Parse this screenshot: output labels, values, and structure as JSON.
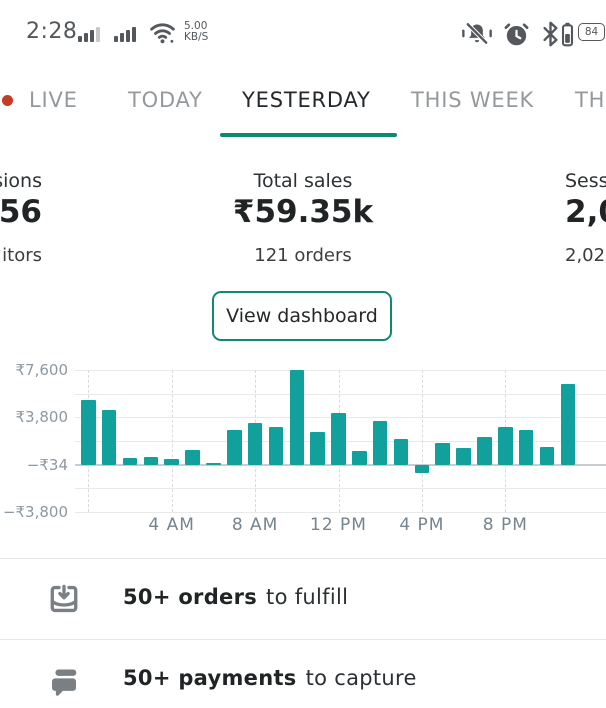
{
  "colors": {
    "accent_teal": "#12a09c",
    "accent_green": "#0e8a71",
    "live_dot_red": "#c43c26"
  },
  "status_bar": {
    "time": "2:28",
    "network_speed_value": "5.00",
    "network_speed_unit": "KB/S",
    "battery_percent": "84"
  },
  "tab_bar": {
    "tabs": [
      {
        "label": "LIVE",
        "active": false,
        "live_dot": true
      },
      {
        "label": "TODAY",
        "active": false
      },
      {
        "label": "YESTERDAY",
        "active": true
      },
      {
        "label": "THIS WEEK",
        "active": false
      },
      {
        "label": "THI",
        "active": false
      }
    ]
  },
  "stats": {
    "left_partial": {
      "label": "sions",
      "value": "56",
      "sub": "itors"
    },
    "center": {
      "label": "Total sales",
      "value": "₹59.35k",
      "sub": "121 orders"
    },
    "right_partial": {
      "label": "Sess",
      "value": "2,0",
      "sub": "2,02"
    }
  },
  "dashboard_button_label": "View dashboard",
  "chart_data": {
    "type": "bar",
    "categories": [
      "12 AM",
      "1 AM",
      "2 AM",
      "3 AM",
      "4 AM",
      "5 AM",
      "6 AM",
      "7 AM",
      "8 AM",
      "9 AM",
      "10 AM",
      "11 AM",
      "12 PM",
      "1 PM",
      "2 PM",
      "3 PM",
      "4 PM",
      "5 PM",
      "6 PM",
      "7 PM",
      "8 PM",
      "9 PM",
      "10 PM",
      "11 PM"
    ],
    "values": [
      5200,
      4400,
      550,
      620,
      460,
      1150,
      150,
      2750,
      3350,
      3000,
      7600,
      2600,
      4150,
      1100,
      3500,
      2050,
      -650,
      1700,
      1350,
      2200,
      3050,
      2750,
      1450,
      6500
    ],
    "x_ticks": [
      {
        "hour": 4,
        "label": "4 AM"
      },
      {
        "hour": 8,
        "label": "8 AM"
      },
      {
        "hour": 12,
        "label": "12 PM"
      },
      {
        "hour": 16,
        "label": "4 PM"
      },
      {
        "hour": 20,
        "label": "8 PM"
      }
    ],
    "y_ticks": [
      {
        "value": 7600,
        "label": "₹7,600"
      },
      {
        "value": 3800,
        "label": "₹3,800"
      },
      {
        "value": -34,
        "label": "−₹34"
      },
      {
        "value": -3800,
        "label": "−₹3,800"
      }
    ],
    "ylim": [
      -3800,
      7600
    ],
    "baseline_value": -34,
    "bar_color": "#12a09c",
    "grid": true,
    "legend": "none"
  },
  "action_items": [
    {
      "icon": "fulfill-orders-icon",
      "bold_text": "50+ orders",
      "rest_text": "to fulfill"
    },
    {
      "icon": "capture-payments-icon",
      "bold_text": "50+ payments",
      "rest_text": "to capture"
    }
  ]
}
